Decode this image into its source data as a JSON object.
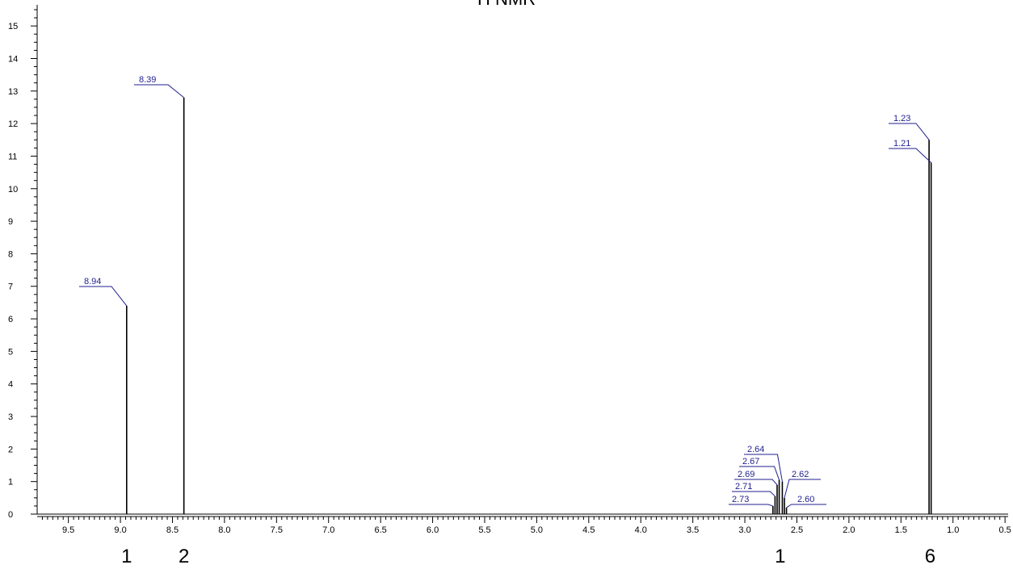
{
  "chart_data": {
    "type": "line",
    "title": "H NMR",
    "xlabel": "",
    "ylabel": "",
    "x_reversed": true,
    "xlim": [
      9.8,
      0.47
    ],
    "ylim": [
      0,
      15.5
    ],
    "x_ticks": [
      "9.5",
      "9.0",
      "8.5",
      "8.0",
      "7.5",
      "7.0",
      "6.5",
      "6.0",
      "5.5",
      "5.0",
      "4.5",
      "4.0",
      "3.5",
      "3.0",
      "2.5",
      "2.0",
      "1.5",
      "1.0",
      "0.5"
    ],
    "y_ticks": [
      "0",
      "1",
      "2",
      "3",
      "4",
      "5",
      "6",
      "7",
      "8",
      "9",
      "10",
      "11",
      "12",
      "13",
      "14",
      "15"
    ],
    "peaks": [
      {
        "x": 8.94,
        "y": 6.4,
        "label": "8.94"
      },
      {
        "x": 8.39,
        "y": 12.8,
        "label": "8.39"
      },
      {
        "x": 2.73,
        "y": 0.25,
        "label": "2.73"
      },
      {
        "x": 2.71,
        "y": 0.55,
        "label": "2.71"
      },
      {
        "x": 2.69,
        "y": 0.9,
        "label": "2.69"
      },
      {
        "x": 2.67,
        "y": 1.05,
        "label": "2.67"
      },
      {
        "x": 2.64,
        "y": 1.0,
        "label": "2.64"
      },
      {
        "x": 2.62,
        "y": 0.5,
        "label": "2.62"
      },
      {
        "x": 2.6,
        "y": 0.2,
        "label": "2.60"
      },
      {
        "x": 1.23,
        "y": 11.5,
        "label": "1.23"
      },
      {
        "x": 1.21,
        "y": 10.8,
        "label": "1.21"
      }
    ],
    "integrations": [
      {
        "x": 8.94,
        "label": "1"
      },
      {
        "x": 8.39,
        "label": "2"
      },
      {
        "x": 2.66,
        "label": "1"
      },
      {
        "x": 1.22,
        "label": "6"
      }
    ],
    "colors": {
      "peak": "#000000",
      "label": "#1f1f8f",
      "axis": "#000000"
    }
  }
}
